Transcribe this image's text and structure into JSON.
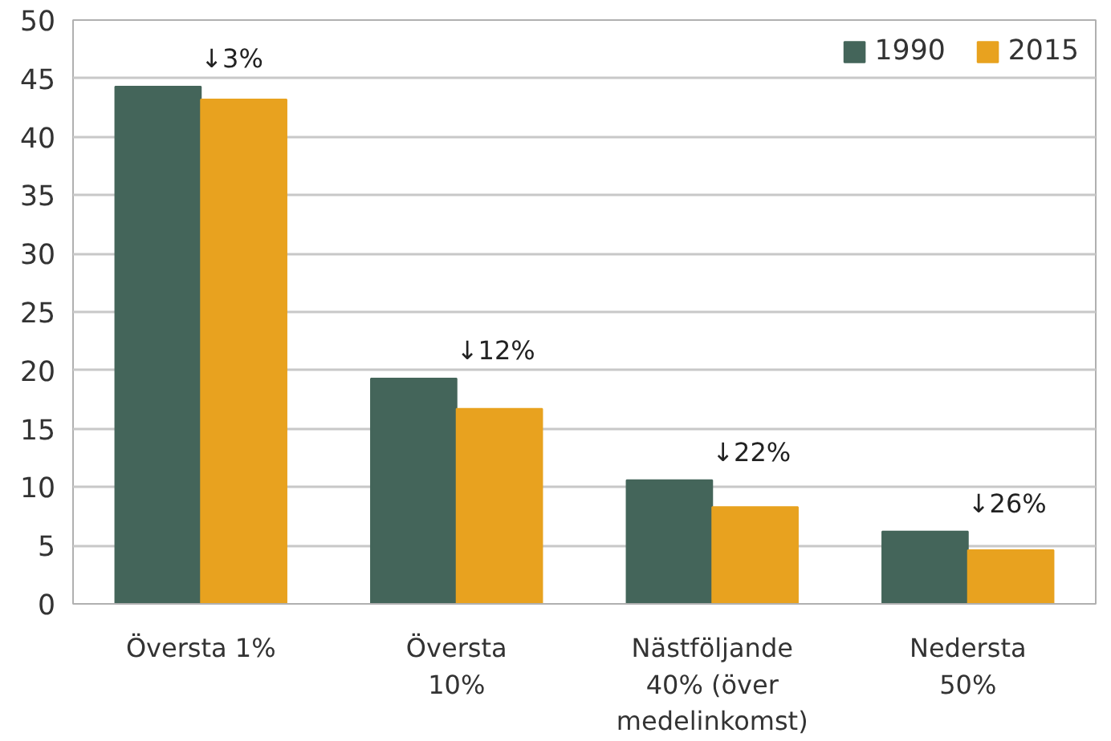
{
  "chart_data": {
    "type": "bar",
    "categories": [
      "Översta 1%",
      "Översta 10%",
      "Nästföljande 40% (över medelinkomst)",
      "Nedersta 50%"
    ],
    "series": [
      {
        "name": "1990",
        "color": "#44655a",
        "values": [
          44.3,
          19.3,
          10.6,
          6.2
        ]
      },
      {
        "name": "2015",
        "color": "#e8a21f",
        "values": [
          43.2,
          16.7,
          8.3,
          4.6
        ]
      }
    ],
    "ylim": [
      0,
      50
    ],
    "yticks": [
      0,
      5,
      10,
      15,
      20,
      25,
      30,
      35,
      40,
      45,
      50
    ],
    "grid": "y",
    "legend": "top right",
    "annotations": [
      "↓3%",
      "↓12%",
      "↓22%",
      "↓26%"
    ]
  }
}
